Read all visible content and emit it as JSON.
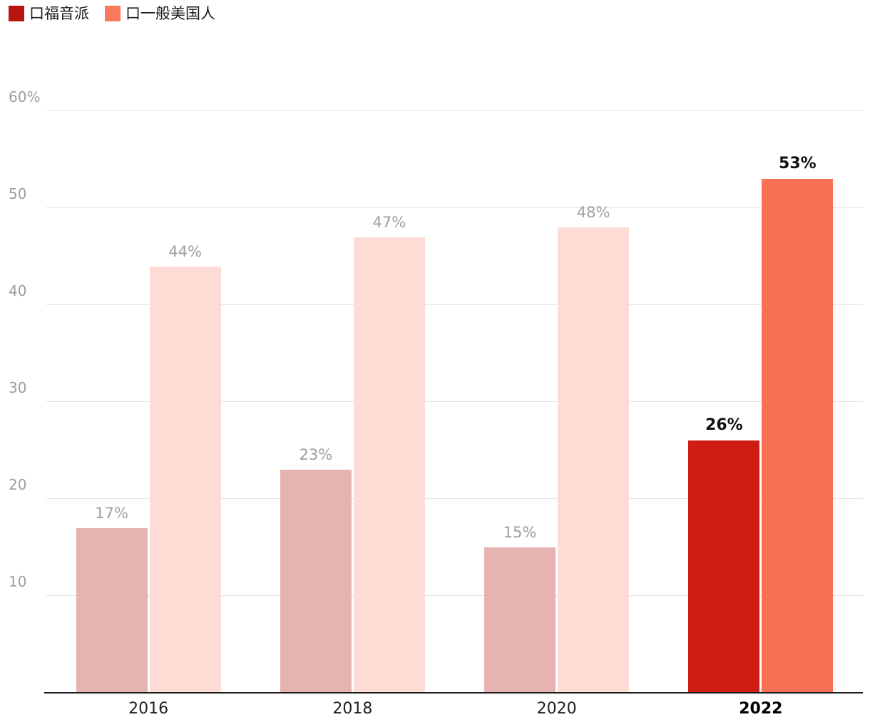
{
  "legend": {
    "items": [
      {
        "label": "口福音派",
        "color": "#b8150e"
      },
      {
        "label": "口一般美国人",
        "color": "#fb7a5e"
      }
    ]
  },
  "chart_data": {
    "type": "bar",
    "title": "",
    "categories": [
      "2016",
      "2018",
      "2020",
      "2022"
    ],
    "series": [
      {
        "name": "福音派",
        "values": [
          17,
          23,
          15,
          26
        ],
        "color_active": "#cf1d14",
        "color_faded": "#e7b3b0"
      },
      {
        "name": "一般美国人",
        "values": [
          44,
          47,
          48,
          53
        ],
        "color_active": "#f97154",
        "color_faded": "#fcdcd5"
      }
    ],
    "data_labels": [
      [
        "17%",
        "23%",
        "15%",
        "26%"
      ],
      [
        "44%",
        "47%",
        "48%",
        "53%"
      ]
    ],
    "highlighted_category": "2022",
    "ylim": [
      0,
      60
    ],
    "yticks": [
      {
        "value": 60,
        "label": "60%"
      },
      {
        "value": 50,
        "label": "50"
      },
      {
        "value": 40,
        "label": "40"
      },
      {
        "value": 30,
        "label": "30"
      },
      {
        "value": 20,
        "label": "20"
      },
      {
        "value": 10,
        "label": "10"
      }
    ],
    "grid": true,
    "legend_position": "top-left"
  },
  "colors": {
    "grid": "#e3e3e3",
    "axis_line": "#1c1c1c",
    "tick_label": "#9e9e9e",
    "data_label_faded": "#9e9e9e",
    "data_label_active": "#111111"
  }
}
